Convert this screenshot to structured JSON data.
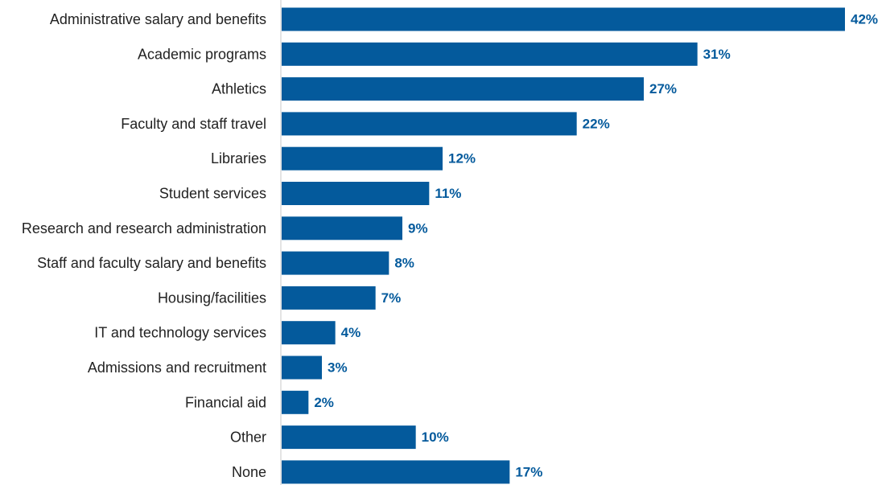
{
  "chart_data": {
    "type": "bar",
    "orientation": "horizontal",
    "categories": [
      "Administrative salary and benefits",
      "Academic programs",
      "Athletics",
      "Faculty and staff travel",
      "Libraries",
      "Student services",
      "Research and research administration",
      "Staff and faculty salary and benefits",
      "Housing/facilities",
      "IT and technology services",
      "Admissions and recruitment",
      "Financial aid",
      "Other",
      "None"
    ],
    "values": [
      42,
      31,
      27,
      22,
      12,
      11,
      9,
      8,
      7,
      4,
      3,
      2,
      10,
      17
    ],
    "value_labels": [
      "42%",
      "31%",
      "27%",
      "22%",
      "12%",
      "11%",
      "9%",
      "8%",
      "7%",
      "4%",
      "3%",
      "2%",
      "10%",
      "17%"
    ],
    "unit": "%",
    "xlim": [
      0,
      42
    ],
    "grid": false,
    "legend": "none",
    "colors": {
      "bar": "#045a9c",
      "value_label": "#045a9c",
      "category_label": "#222222",
      "axis": "#c8c8c8"
    }
  }
}
